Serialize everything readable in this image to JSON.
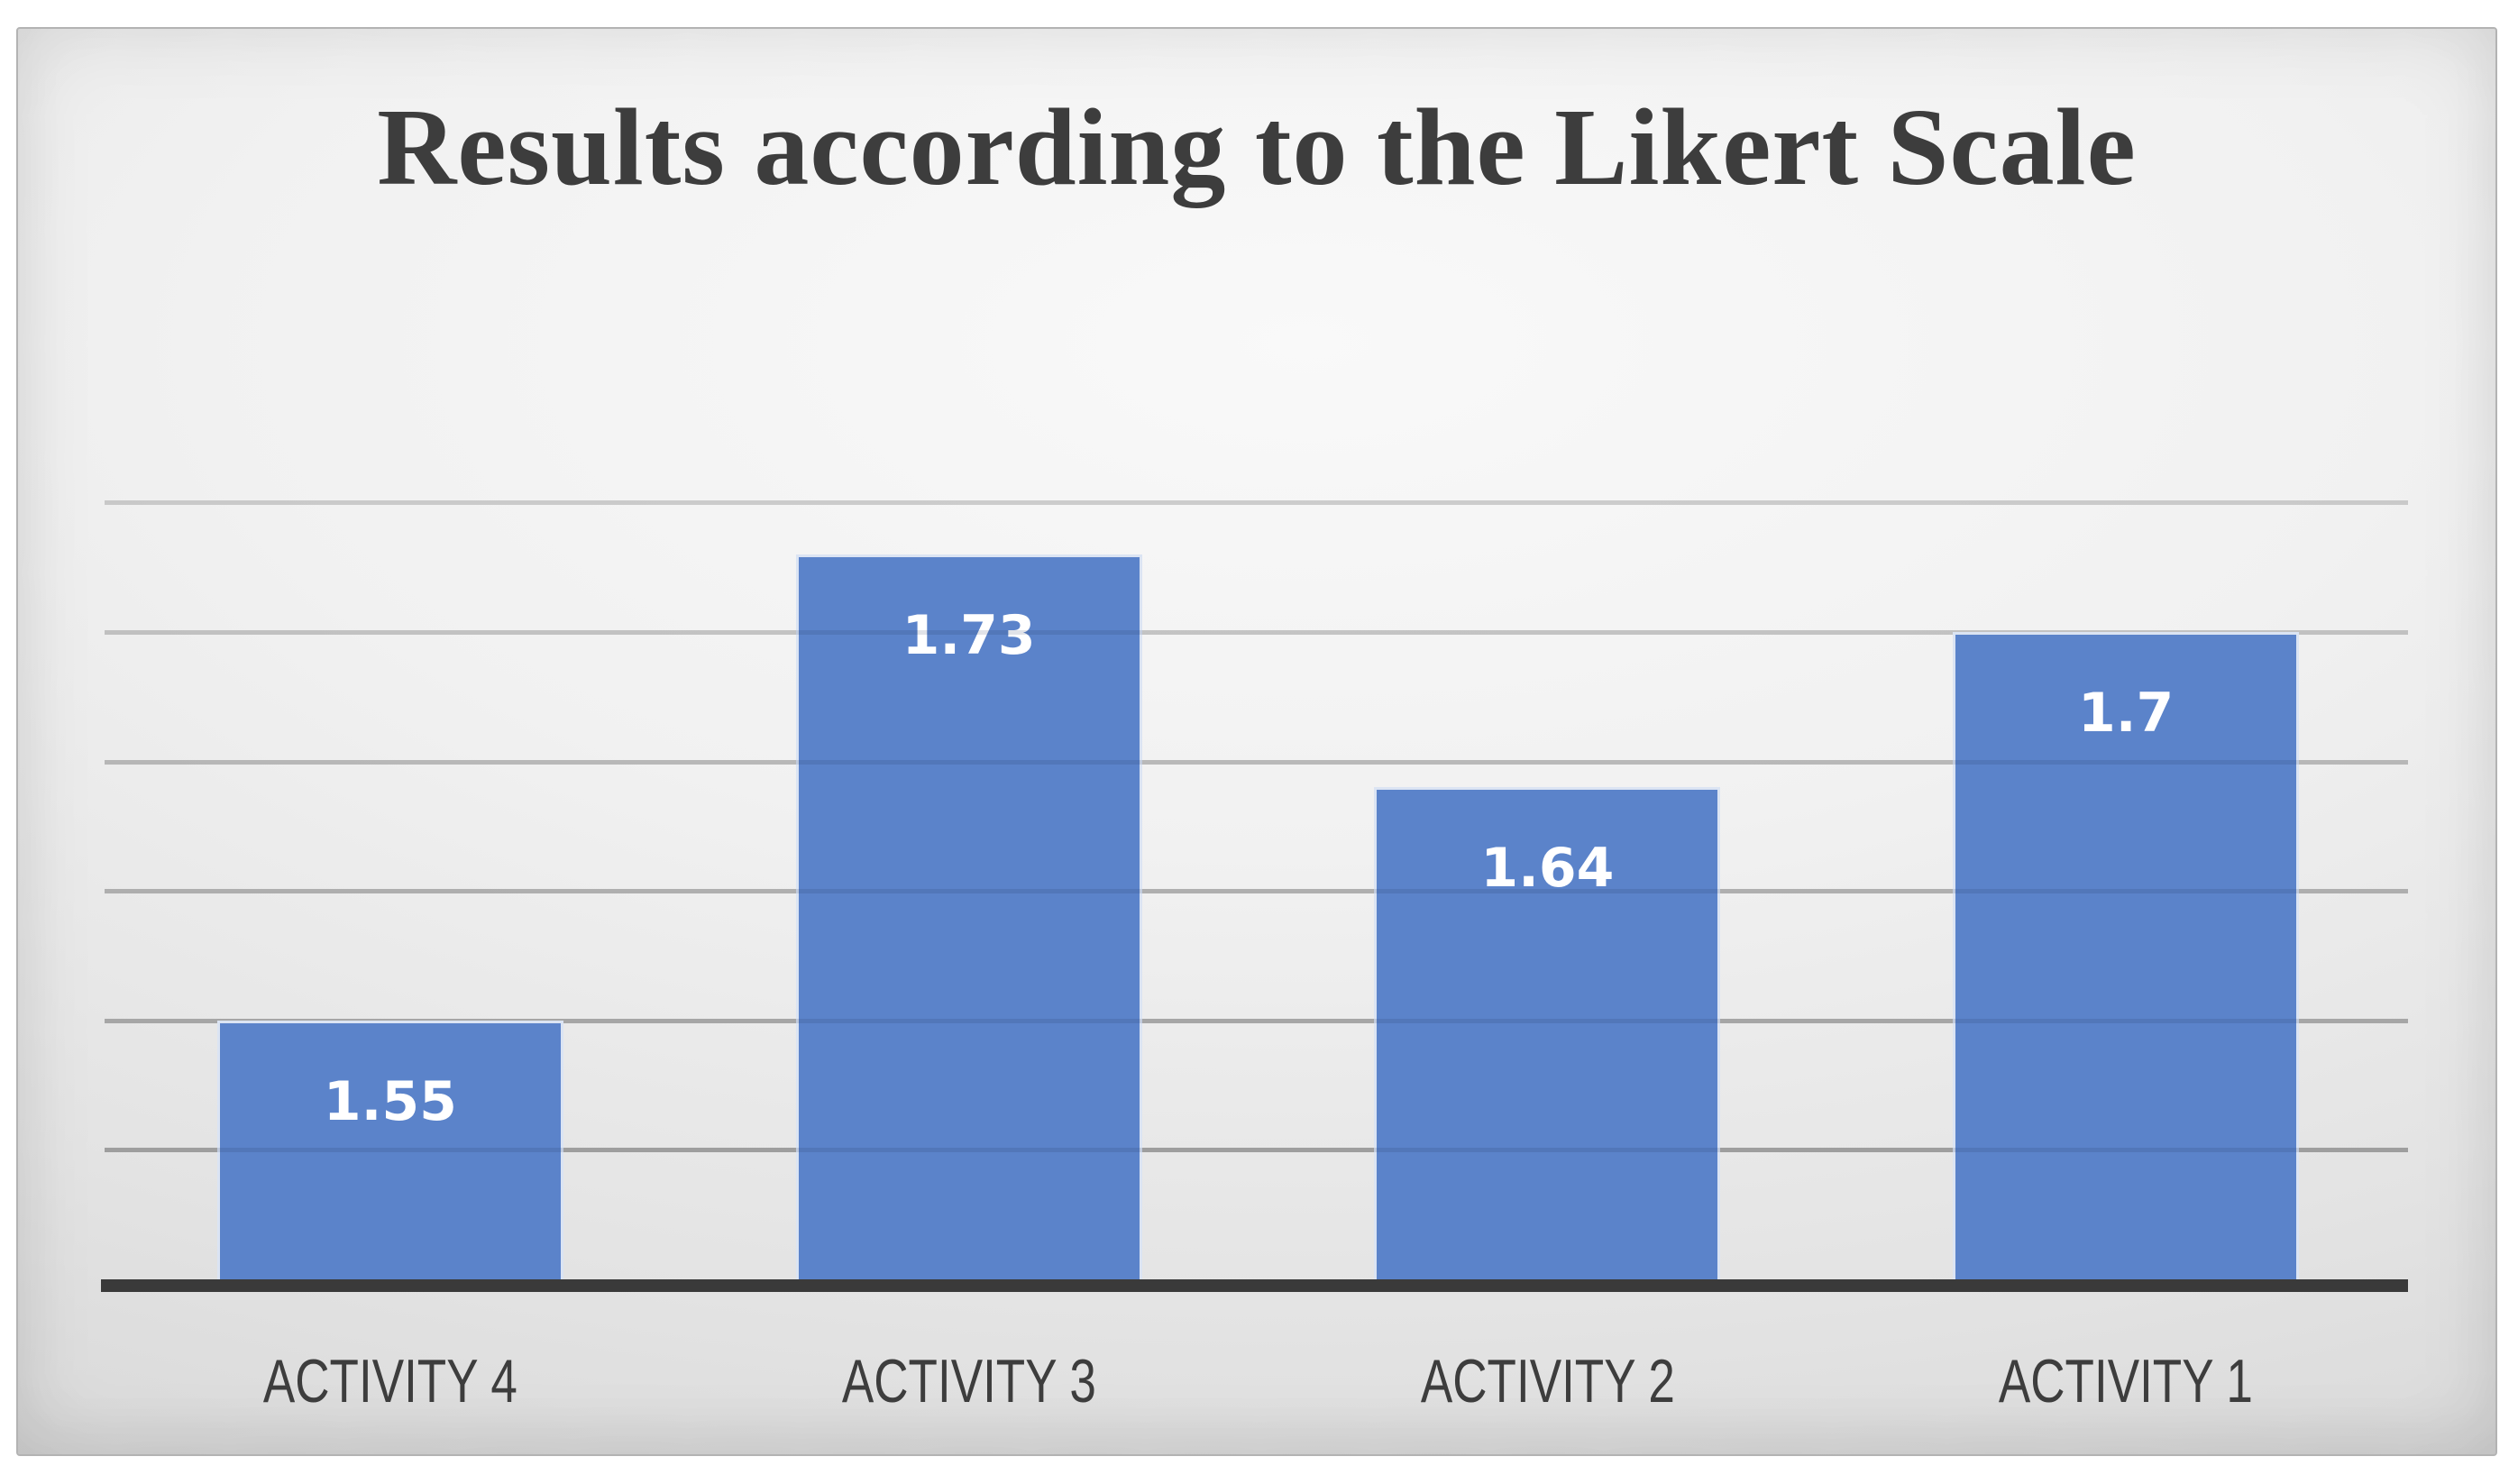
{
  "title": "Results according to the Likert Scale",
  "chart_data": {
    "type": "bar",
    "title": "Results according to the Likert Scale",
    "categories": [
      "ACTIVITY 4",
      "ACTIVITY 3",
      "ACTIVITY 2",
      "ACTIVITY 1"
    ],
    "values": [
      1.55,
      1.73,
      1.64,
      1.7
    ],
    "data_labels": [
      "1.55",
      "1.73",
      "1.64",
      "1.7"
    ],
    "xlabel": "",
    "ylabel": "",
    "ylim": [
      1.45,
      1.8
    ],
    "gridlines": [
      1.5,
      1.55,
      1.6,
      1.65,
      1.7,
      1.75
    ],
    "gridline_step": 0.05,
    "legend": false,
    "grid": true,
    "colors": {
      "bar": "#5b83ca",
      "bar_edge": "#ffffff",
      "data_label": "#ffffff",
      "axis_line": "#3a3a3a",
      "gridline": "#9a9a9a",
      "text": "#3d3d3d",
      "panel_edge": "#b3b3b3"
    }
  }
}
